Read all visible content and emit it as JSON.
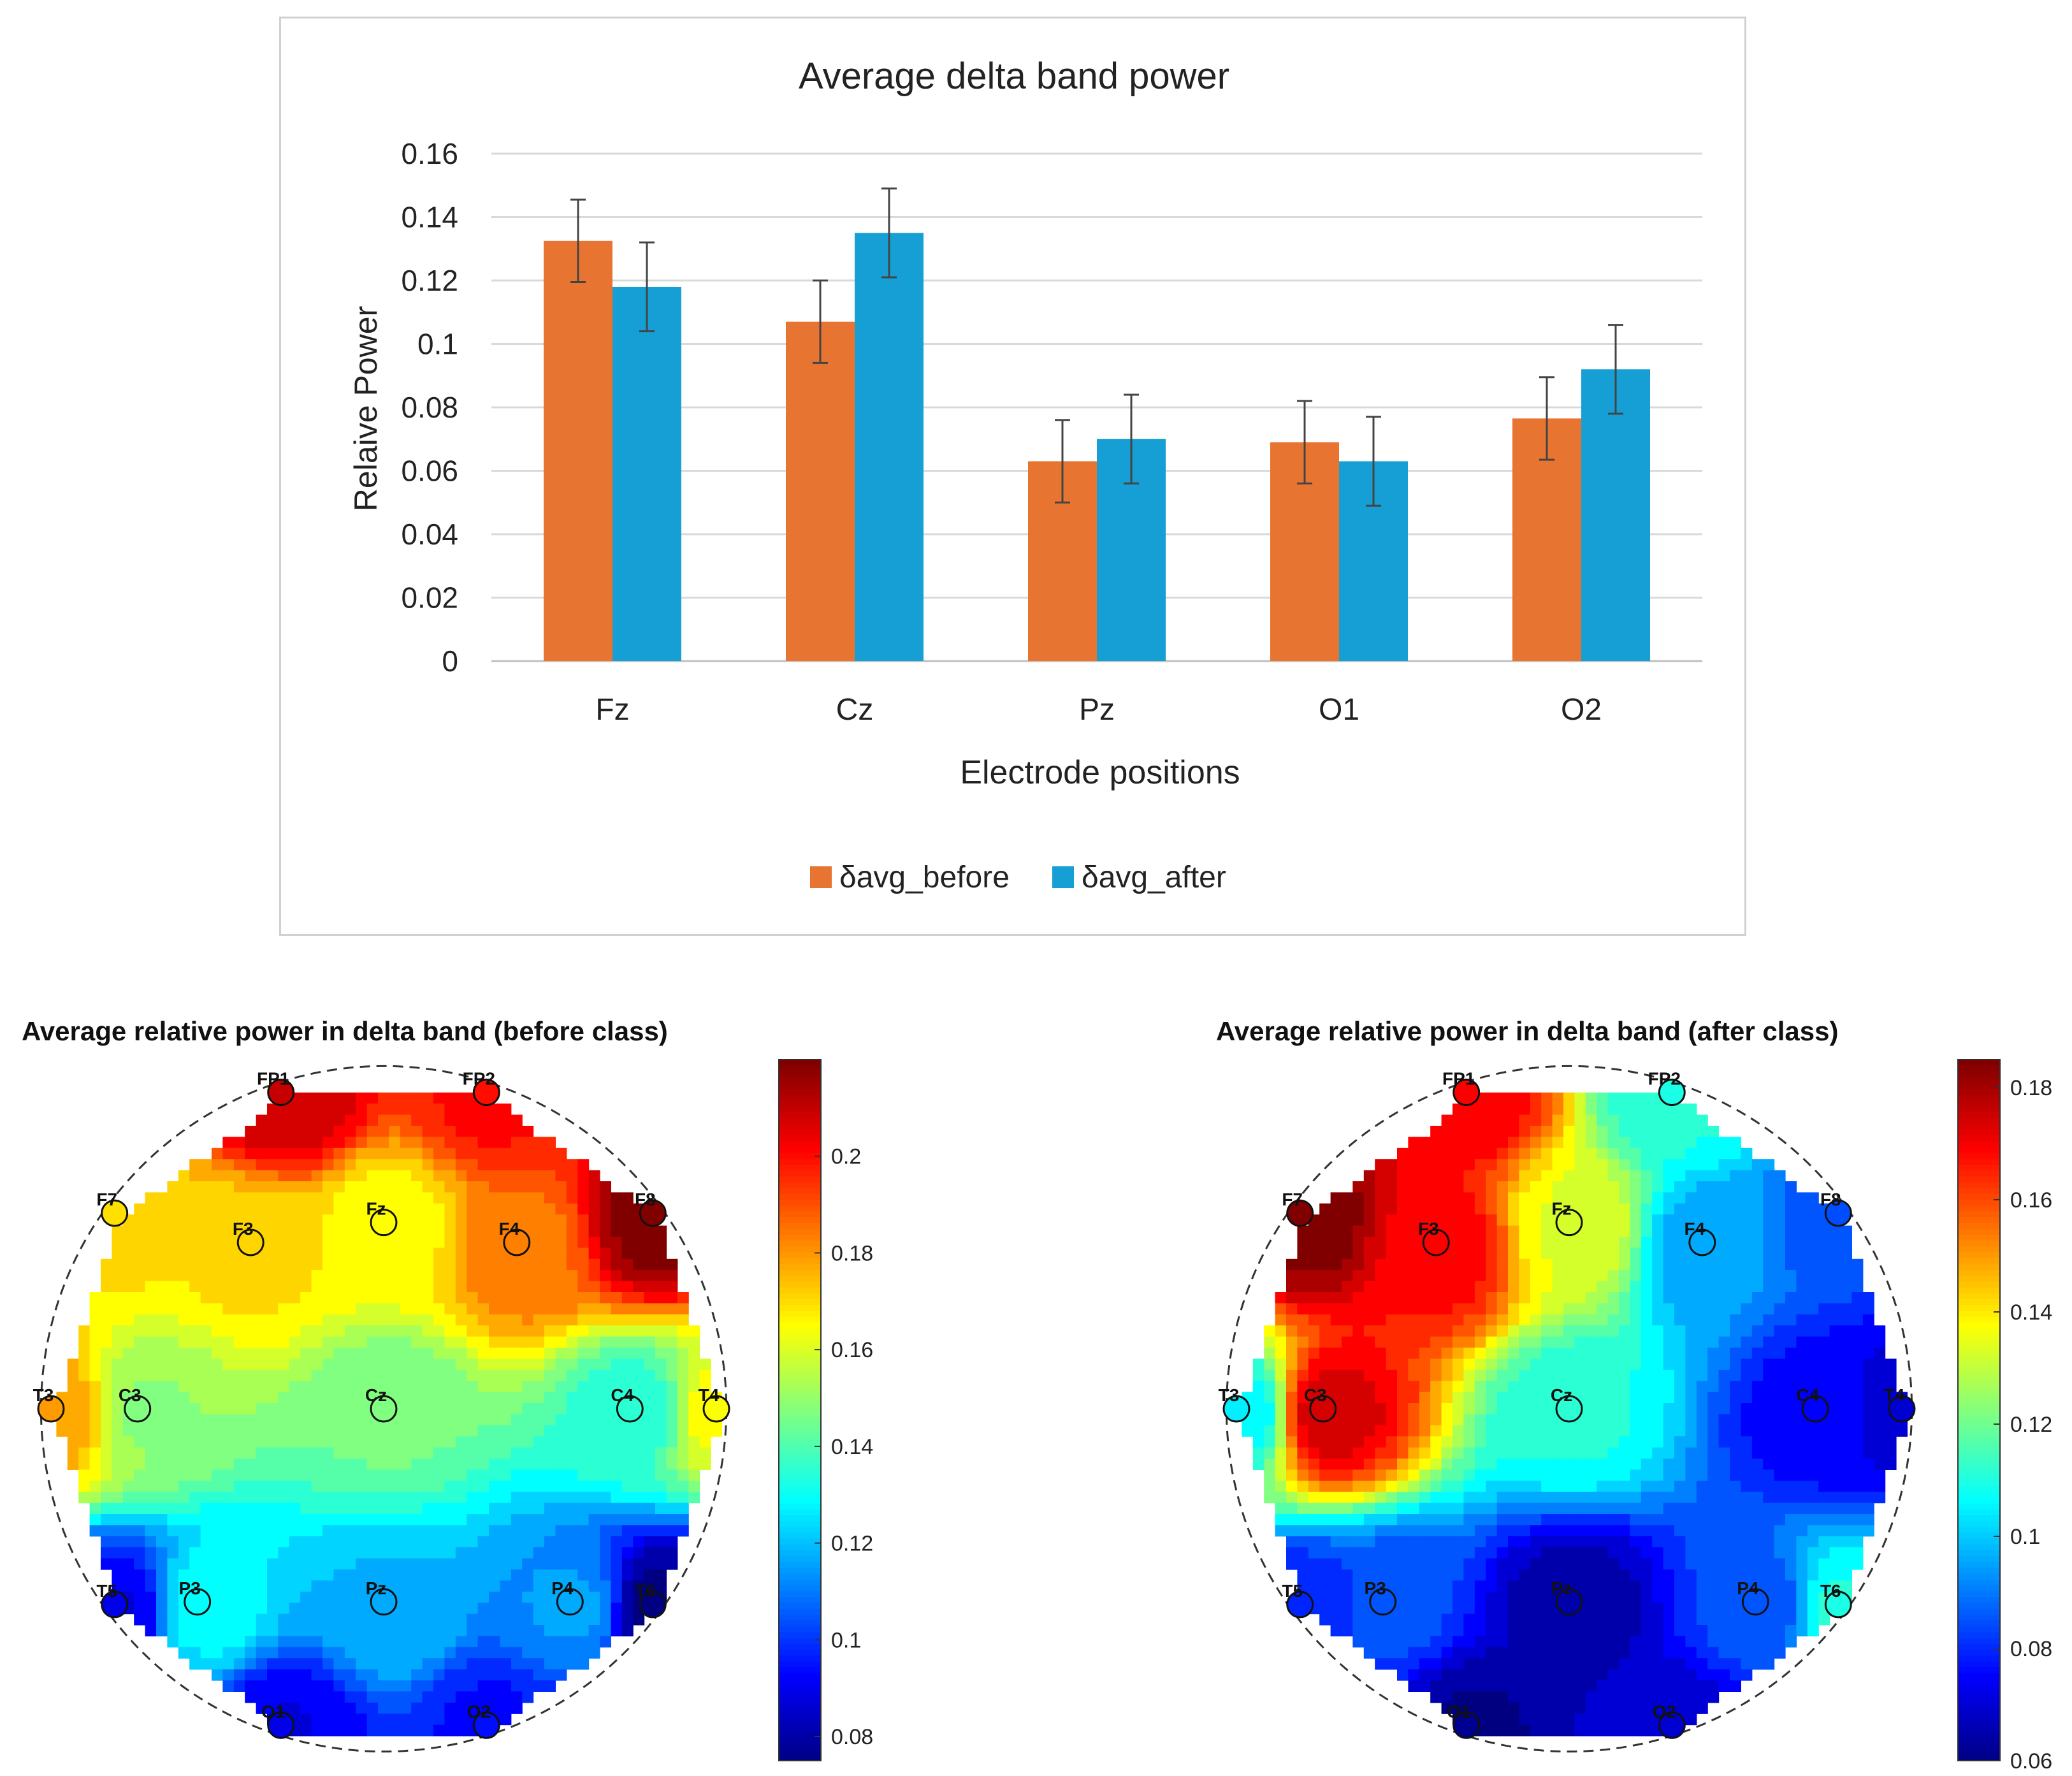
{
  "chart_data": [
    {
      "type": "bar",
      "title": "Average delta band power",
      "xlabel": "Electrode positions",
      "ylabel": "Relaive Power",
      "ylim": [
        0,
        0.16
      ],
      "yticks": [
        "0",
        "0.02",
        "0.04",
        "0.06",
        "0.08",
        "0.1",
        "0.12",
        "0.14",
        "0.16"
      ],
      "categories": [
        "Fz",
        "Cz",
        "Pz",
        "O1",
        "O2"
      ],
      "series": [
        {
          "name": "δavg_before",
          "color": "#E87432",
          "values": [
            0.1325,
            0.107,
            0.063,
            0.069,
            0.0765
          ],
          "error": [
            0.013,
            0.013,
            0.013,
            0.013,
            0.013
          ]
        },
        {
          "name": "δavg_after",
          "color": "#169FD5",
          "values": [
            0.118,
            0.135,
            0.07,
            0.063,
            0.092
          ],
          "error": [
            0.014,
            0.014,
            0.014,
            0.014,
            0.014
          ]
        }
      ],
      "legend_position": "bottom-center",
      "grid": true
    },
    {
      "type": "heatmap",
      "title": "Average relative power in delta band (before class)",
      "colorbar": {
        "min": 0.075,
        "max": 0.22,
        "ticks": [
          "0.08",
          "0.1",
          "0.12",
          "0.14",
          "0.16",
          "0.18",
          "0.2"
        ]
      },
      "electrodes": [
        {
          "label": "FP1",
          "value": 0.21
        },
        {
          "label": "FP2",
          "value": 0.2
        },
        {
          "label": "F7",
          "value": 0.17
        },
        {
          "label": "F3",
          "value": 0.17
        },
        {
          "label": "Fz",
          "value": 0.165
        },
        {
          "label": "F4",
          "value": 0.185
        },
        {
          "label": "F8",
          "value": 0.22
        },
        {
          "label": "T3",
          "value": 0.18
        },
        {
          "label": "C3",
          "value": 0.15
        },
        {
          "label": "Cz",
          "value": 0.145
        },
        {
          "label": "C4",
          "value": 0.135
        },
        {
          "label": "T4",
          "value": 0.165
        },
        {
          "label": "T5",
          "value": 0.09
        },
        {
          "label": "P3",
          "value": 0.13
        },
        {
          "label": "Pz",
          "value": 0.12
        },
        {
          "label": "P4",
          "value": 0.115
        },
        {
          "label": "T6",
          "value": 0.075
        },
        {
          "label": "O1",
          "value": 0.09
        },
        {
          "label": "O2",
          "value": 0.095
        }
      ]
    },
    {
      "type": "heatmap",
      "title": "Average relative power in delta band (after class)",
      "colorbar": {
        "min": 0.06,
        "max": 0.185,
        "ticks": [
          "0.06",
          "0.08",
          "0.1",
          "0.12",
          "0.14",
          "0.16",
          "0.18"
        ]
      },
      "electrodes": [
        {
          "label": "FP1",
          "value": 0.17
        },
        {
          "label": "FP2",
          "value": 0.11
        },
        {
          "label": "F7",
          "value": 0.185
        },
        {
          "label": "F3",
          "value": 0.17
        },
        {
          "label": "Fz",
          "value": 0.135
        },
        {
          "label": "F4",
          "value": 0.095
        },
        {
          "label": "F8",
          "value": 0.085
        },
        {
          "label": "T3",
          "value": 0.105
        },
        {
          "label": "C3",
          "value": 0.175
        },
        {
          "label": "Cz",
          "value": 0.11
        },
        {
          "label": "C4",
          "value": 0.075
        },
        {
          "label": "T4",
          "value": 0.07
        },
        {
          "label": "T5",
          "value": 0.08
        },
        {
          "label": "P3",
          "value": 0.085
        },
        {
          "label": "Pz",
          "value": 0.065
        },
        {
          "label": "P4",
          "value": 0.085
        },
        {
          "label": "T6",
          "value": 0.11
        },
        {
          "label": "O1",
          "value": 0.062
        },
        {
          "label": "O2",
          "value": 0.07
        }
      ]
    }
  ]
}
